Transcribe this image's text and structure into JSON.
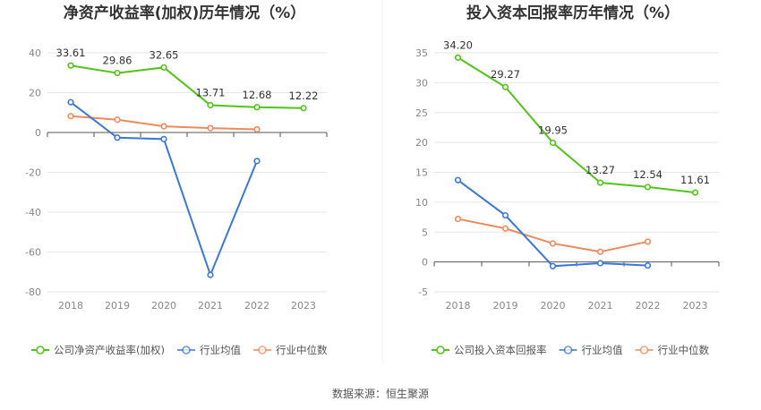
{
  "source_text": "数据来源：恒生聚源",
  "chart_data": [
    {
      "type": "line",
      "title": "净资产收益率(加权)历年情况（%）",
      "categories": [
        "2018",
        "2019",
        "2020",
        "2021",
        "2022",
        "2023"
      ],
      "ylim": [
        -80,
        40
      ],
      "yticks": [
        40,
        20,
        0,
        -20,
        -40,
        -60,
        -80
      ],
      "grid": true,
      "legend_position": "bottom",
      "series": [
        {
          "name": "公司净资产收益率(加权)",
          "color": "#52c41a",
          "labels": true,
          "values": [
            33.61,
            29.86,
            32.65,
            13.71,
            12.68,
            12.22
          ]
        },
        {
          "name": "行业均值",
          "color": "#3a78d8",
          "labels": false,
          "values": [
            15.2,
            -2.6,
            -3.3,
            -71.5,
            -14.3,
            null
          ]
        },
        {
          "name": "行业中位数",
          "color": "#f08a5d",
          "labels": false,
          "values": [
            8.2,
            6.4,
            3.1,
            2.2,
            1.6,
            null
          ]
        }
      ]
    },
    {
      "type": "line",
      "title": "投入资本回报率历年情况（%）",
      "categories": [
        "2018",
        "2019",
        "2020",
        "2021",
        "2022",
        "2023"
      ],
      "ylim": [
        -5,
        35
      ],
      "yticks": [
        35,
        30,
        25,
        20,
        15,
        10,
        5,
        0,
        -5
      ],
      "grid": true,
      "legend_position": "bottom",
      "series": [
        {
          "name": "公司投入资本回报率",
          "color": "#52c41a",
          "labels": true,
          "values": [
            34.2,
            29.27,
            19.95,
            13.27,
            12.54,
            11.61
          ]
        },
        {
          "name": "行业均值",
          "color": "#3a78d8",
          "labels": false,
          "values": [
            13.7,
            7.8,
            -0.7,
            -0.2,
            -0.6,
            null
          ]
        },
        {
          "name": "行业中位数",
          "color": "#f08a5d",
          "labels": false,
          "values": [
            7.2,
            5.6,
            3.1,
            1.7,
            3.4,
            null
          ]
        }
      ]
    }
  ]
}
